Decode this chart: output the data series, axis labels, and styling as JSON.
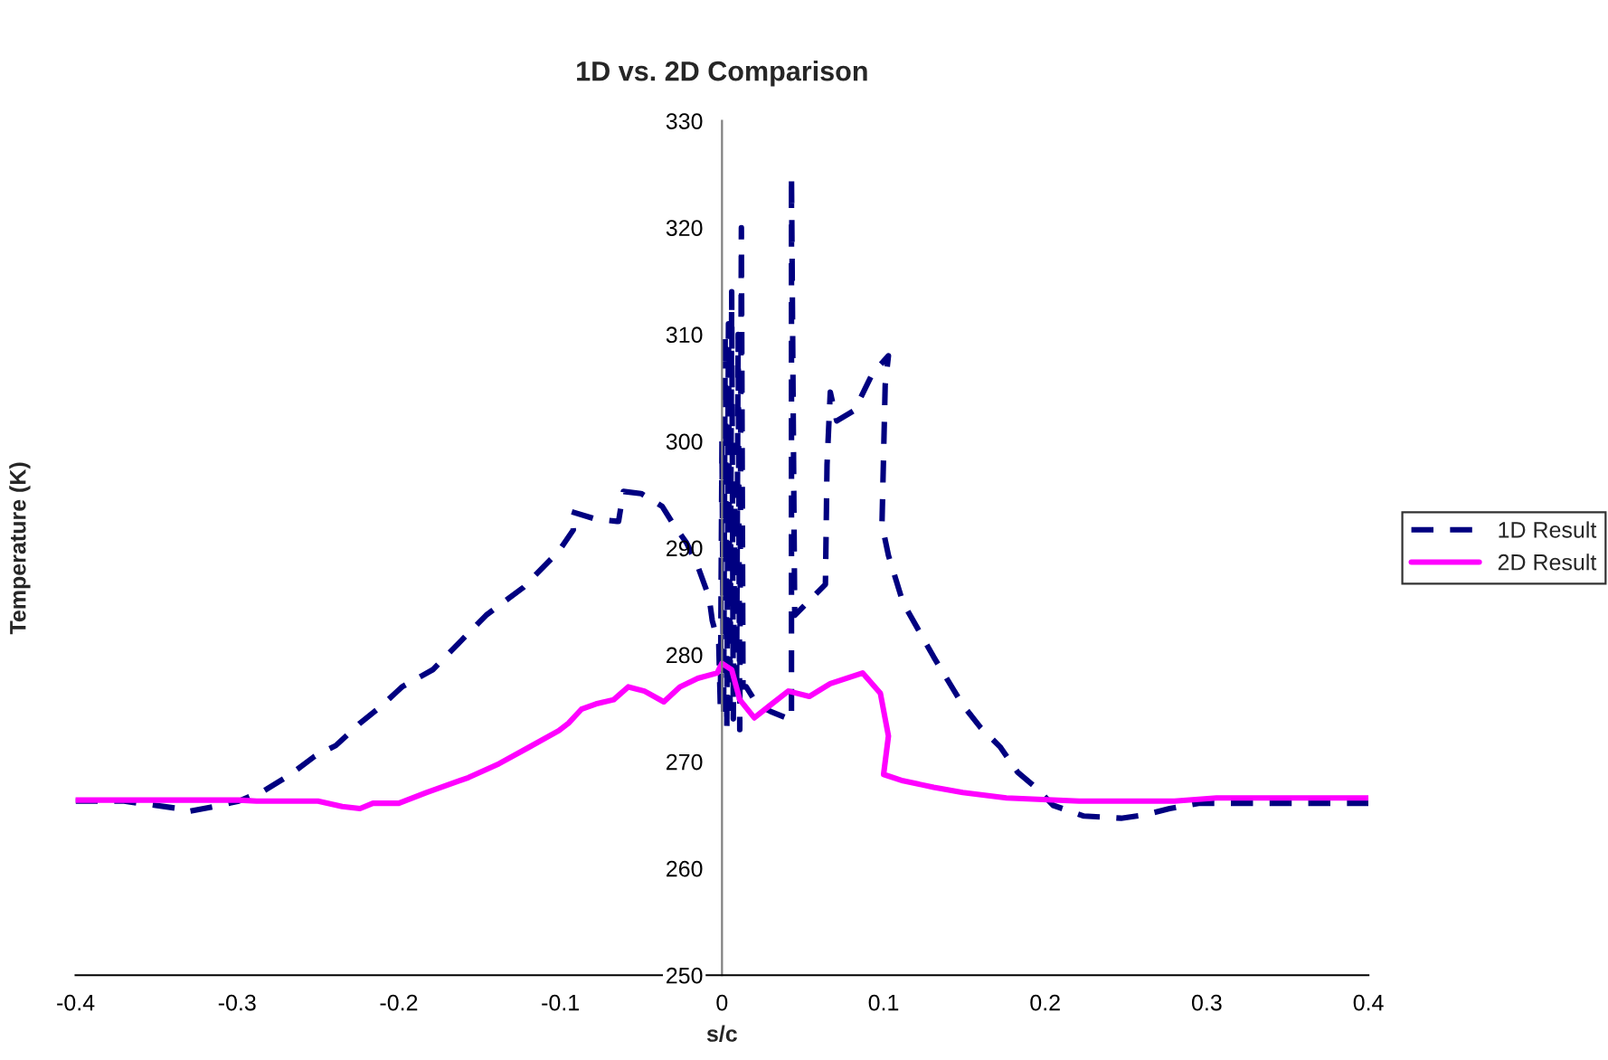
{
  "chart_data": {
    "type": "line",
    "title": "1D vs. 2D Comparison",
    "xlabel": "s/c",
    "ylabel": "Temperature (K)",
    "xlim": [
      -0.4,
      0.4
    ],
    "xticks": [
      -0.4,
      -0.3,
      -0.2,
      -0.1,
      0,
      0.1,
      0.2,
      0.3,
      0.4
    ],
    "ylim": [
      250,
      330
    ],
    "yticks": [
      250,
      260,
      270,
      280,
      290,
      300,
      310,
      320,
      330
    ],
    "grid": false,
    "legend": "right",
    "marker": "none",
    "series": [
      {
        "name": "1D Result",
        "color": "#000080",
        "line_style": "dashed",
        "x": [
          -0.4,
          -0.37,
          -0.336,
          -0.331,
          -0.314,
          -0.299,
          -0.283,
          -0.267,
          -0.252,
          -0.239,
          -0.224,
          -0.21,
          -0.198,
          -0.179,
          -0.146,
          -0.123,
          -0.101,
          -0.092,
          -0.093,
          -0.078,
          -0.065,
          -0.064,
          -0.061,
          -0.05,
          -0.037,
          -0.03,
          -0.022,
          -0.015,
          -0.008,
          -0.006,
          -0.003,
          -0.002,
          -0.001,
          0,
          0.001,
          0.002,
          0.003,
          0.004,
          0.005,
          0.006,
          0.007,
          0.008,
          0.009,
          0.01,
          0.011,
          0.012,
          0.013,
          0.015,
          0.022,
          0.03,
          0.043,
          0.043,
          0.045,
          0.064,
          0.065,
          0.067,
          0.071,
          0.082,
          0.093,
          0.103,
          0.101,
          0.099,
          0.103,
          0.112,
          0.131,
          0.149,
          0.16,
          0.172,
          0.183,
          0.194,
          0.205,
          0.224,
          0.247,
          0.261,
          0.277,
          0.295,
          0.4
        ],
        "values": [
          266.3,
          266.3,
          265.6,
          265.3,
          265.8,
          266.3,
          267.3,
          268.8,
          270.5,
          271.5,
          273.6,
          275.3,
          277,
          278.6,
          283.7,
          286.3,
          289.7,
          291.7,
          293.4,
          292.7,
          292.5,
          292.5,
          295.3,
          295.1,
          293.9,
          292.2,
          290.5,
          288.3,
          285.4,
          283.2,
          281.5,
          281,
          275,
          300,
          274,
          310,
          273,
          311,
          275,
          314,
          274,
          296,
          276,
          310,
          273,
          320,
          277,
          277,
          275.3,
          274.7,
          273.9,
          324.9,
          283.7,
          286.6,
          297.8,
          304.6,
          301.9,
          302.9,
          306.3,
          308,
          305.3,
          292.2,
          289.3,
          284.9,
          279.8,
          275.3,
          273.2,
          271.4,
          269,
          267.6,
          265.9,
          264.9,
          264.7,
          265,
          265.6,
          266.1,
          266.1
        ]
      },
      {
        "name": "2D Result",
        "color": "#ff00ff",
        "line_style": "solid",
        "x": [
          -0.4,
          -0.299,
          -0.288,
          -0.25,
          -0.235,
          -0.224,
          -0.216,
          -0.2,
          -0.183,
          -0.157,
          -0.138,
          -0.12,
          -0.101,
          -0.095,
          -0.087,
          -0.078,
          -0.067,
          -0.058,
          -0.048,
          -0.036,
          -0.026,
          -0.015,
          -0.003,
          0,
          0.006,
          0.011,
          0.02,
          0.03,
          0.041,
          0.054,
          0.067,
          0.087,
          0.098,
          0.103,
          0.1,
          0.112,
          0.131,
          0.149,
          0.176,
          0.221,
          0.28,
          0.306,
          0.4
        ],
        "values": [
          266.4,
          266.4,
          266.3,
          266.3,
          265.8,
          265.6,
          266.1,
          266.1,
          267.1,
          268.5,
          269.8,
          271.3,
          272.9,
          273.6,
          274.9,
          275.4,
          275.8,
          277,
          276.6,
          275.6,
          277,
          277.8,
          278.3,
          279.2,
          278.6,
          275.8,
          274.1,
          275.3,
          276.6,
          276.1,
          277.3,
          278.3,
          276.4,
          272.4,
          268.8,
          268.2,
          267.6,
          267.1,
          266.6,
          266.3,
          266.3,
          266.6,
          266.6
        ]
      }
    ]
  }
}
